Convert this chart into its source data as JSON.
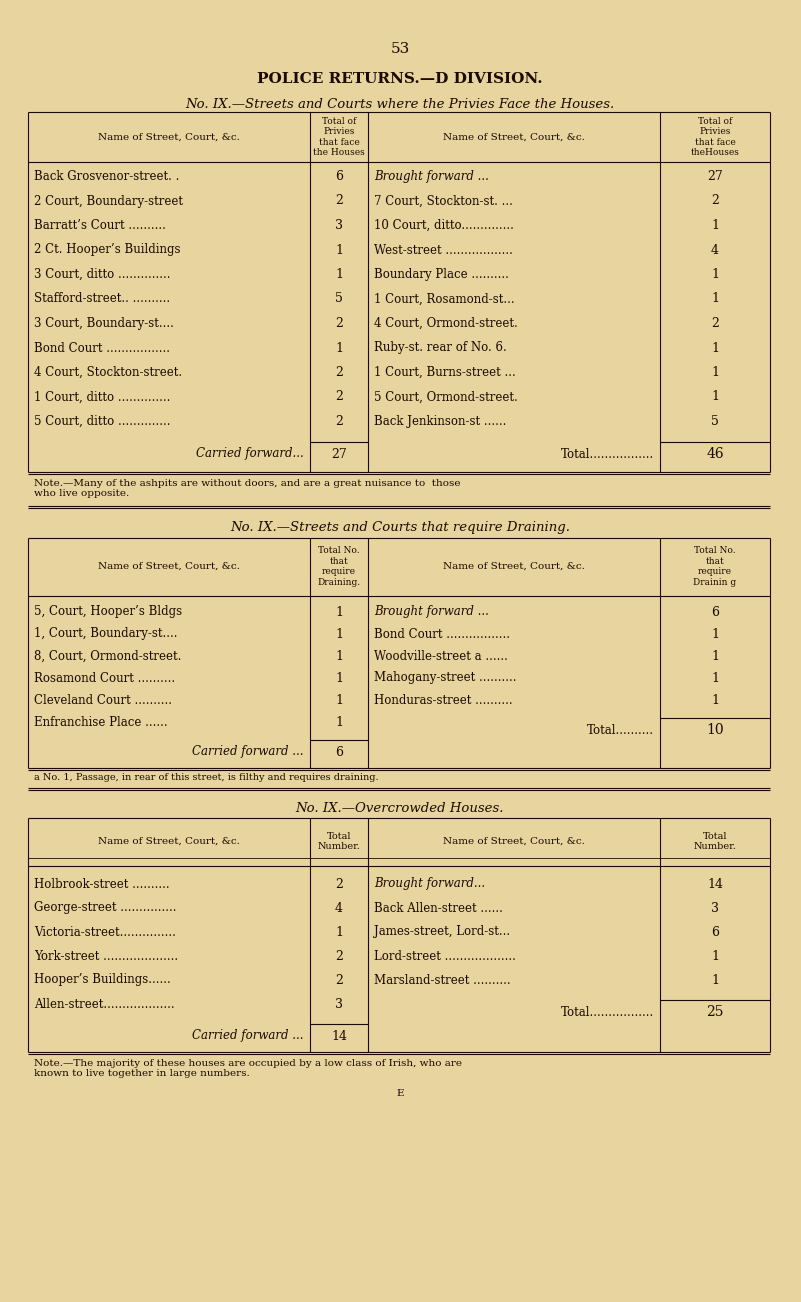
{
  "bg_color": "#e8d49e",
  "text_color": "#1a0a00",
  "page_number": "53",
  "main_title": "POLICE RETURNS.—D DIVISION.",
  "section1_title": "No. IX.—Streets and Courts where the Privies Face the Houses.",
  "section1_left": [
    [
      "Back Grosvenor-street. .",
      "6"
    ],
    [
      "2 Court, Boundary-street",
      "2"
    ],
    [
      "Barratt’s Court ..........",
      "3"
    ],
    [
      "2 Ct. Hooper’s Buildings",
      "1"
    ],
    [
      "3 Court, ditto ..............",
      "1"
    ],
    [
      "Stafford-street.. ..........",
      "5"
    ],
    [
      "3 Court, Boundary-st....",
      "2"
    ],
    [
      "Bond Court .................",
      "1"
    ],
    [
      "4 Court, Stockton-street.",
      "2"
    ],
    [
      "1 Court, ditto ..............",
      "2"
    ],
    [
      "5 Court, ditto ..............",
      "2"
    ]
  ],
  "section1_carried": [
    "Carried forward...",
    "27"
  ],
  "section1_right": [
    [
      "Brought forward ...",
      "27"
    ],
    [
      "7 Court, Stockton-st. ...",
      "2"
    ],
    [
      "10 Court, ditto..............",
      "1"
    ],
    [
      "West-street ..................",
      "4"
    ],
    [
      "Boundary Place ..........",
      "1"
    ],
    [
      "1 Court, Rosamond-st...",
      "1"
    ],
    [
      "4 Court, Ormond-street.",
      "2"
    ],
    [
      "Ruby-st. rear of No. 6.",
      "1"
    ],
    [
      "1 Court, Burns-street ...",
      "1"
    ],
    [
      "5 Court, Ormond-street.",
      "1"
    ],
    [
      "Back Jenkinson-st ......",
      "5"
    ]
  ],
  "section1_total": [
    "Total.................",
    "46"
  ],
  "section1_note": "Note.—Many of the ashpits are without doors, and are a great nuisance to  those\nwho live opposite.",
  "section2_title": "No. IX.—Streets and Courts that require Draining.",
  "section2_left": [
    [
      "5, Court, Hooper’s Bldgs",
      "1"
    ],
    [
      "1, Court, Boundary-st....",
      "1"
    ],
    [
      "8, Court, Ormond-street.",
      "1"
    ],
    [
      "Rosamond Court ..........",
      "1"
    ],
    [
      "Cleveland Court ..........",
      "1"
    ],
    [
      "Enfranchise Place ......",
      "1"
    ]
  ],
  "section2_carried": [
    "Carried forward ...",
    "6"
  ],
  "section2_right": [
    [
      "Brought forward ...",
      "6"
    ],
    [
      "Bond Court .................",
      "1"
    ],
    [
      "Woodville-street a ......",
      "1"
    ],
    [
      "Mahogany-street ..........",
      "1"
    ],
    [
      "Honduras-street ..........",
      "1"
    ]
  ],
  "section2_total": [
    "Total..........",
    "10"
  ],
  "section2_note": "a No. 1, Passage, in rear of this street, is filthy and requires draining.",
  "section3_title": "No. IX.—Overcrowded Houses.",
  "section3_left": [
    [
      "Holbrook-street ..........",
      "2"
    ],
    [
      "George-street ...............",
      "4"
    ],
    [
      "Victoria-street...............",
      "1"
    ],
    [
      "York-street ....................",
      "2"
    ],
    [
      "Hooper’s Buildings......",
      "2"
    ],
    [
      "Allen-street...................",
      "3"
    ]
  ],
  "section3_carried": [
    "Carried forward ...",
    "14"
  ],
  "section3_right": [
    [
      "Brought forward...",
      "14"
    ],
    [
      "Back Allen-street ......",
      "3"
    ],
    [
      "James-street, Lord-st...",
      "6"
    ],
    [
      "Lord-street ...................",
      "1"
    ],
    [
      "Marsland-street ..........",
      "1"
    ]
  ],
  "section3_total": [
    "Total.................",
    "25"
  ],
  "section3_note": "Note.—The majority of these houses are occupied by a low class of Irish, who are\nknown to live together in large numbers.",
  "section3_note2": "E"
}
